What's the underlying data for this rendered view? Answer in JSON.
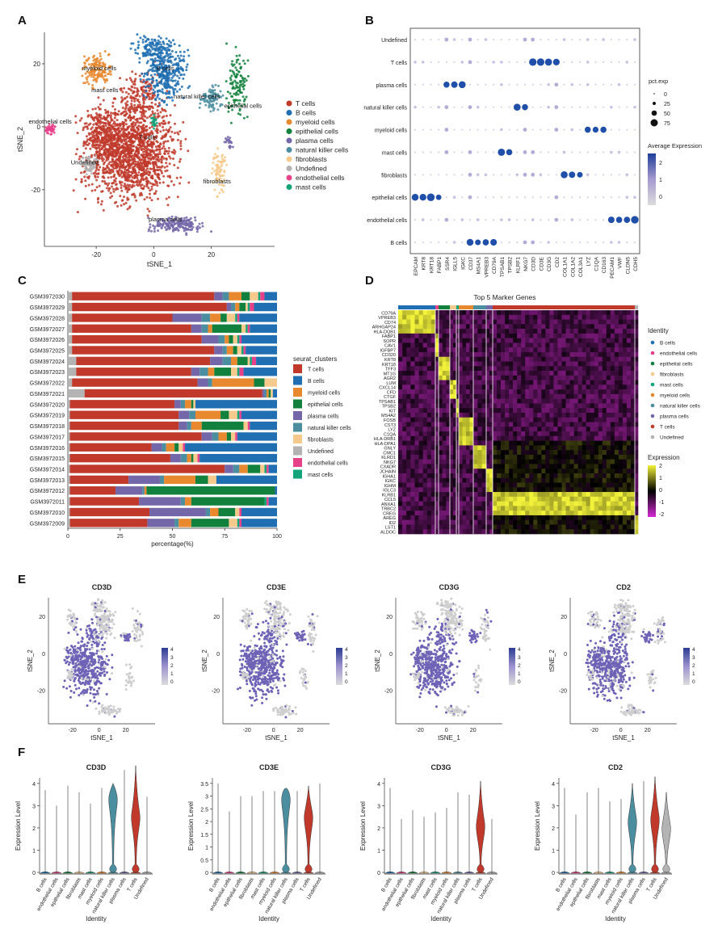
{
  "panel_letters": [
    "A",
    "B",
    "C",
    "D",
    "E",
    "F"
  ],
  "colors": {
    "T cells": "#c0392b",
    "B cells": "#1f6fb2",
    "myeloid cells": "#e8892f",
    "epithelial cells": "#12813d",
    "plasma cells": "#7467a9",
    "natural killer cells": "#4b8ea0",
    "fibroblasts": "#f6ca8c",
    "Undefined": "#b3b3b3",
    "endothelial cells": "#e7418a",
    "mast cells": "#15a37a"
  },
  "chart_data": [
    {
      "panel": "A",
      "type": "scatter",
      "xlabel": "tSNE_1",
      "ylabel": "tSNE_2",
      "xticks": [
        -20,
        0,
        20
      ],
      "yticks": [
        -20,
        0,
        20
      ],
      "xlim": [
        -38,
        42
      ],
      "ylim": [
        -38,
        30
      ],
      "legend": [
        "T cells",
        "B cells",
        "myeloid cells",
        "epithelial cells",
        "plasma cells",
        "natural killer cells",
        "fibroblasts",
        "Undefined",
        "endothelial cells",
        "mast cells"
      ],
      "legend_position": "right",
      "cluster_labels": [
        {
          "text": "myeloid cells",
          "x": -19,
          "y": 18
        },
        {
          "text": "B cells",
          "x": 4,
          "y": 18
        },
        {
          "text": "mast cells",
          "x": -17,
          "y": 11
        },
        {
          "text": "natural killer cells",
          "x": 15,
          "y": 9
        },
        {
          "text": "epithelial cells",
          "x": 31,
          "y": 6
        },
        {
          "text": "endothelial cells",
          "x": -36,
          "y": 1
        },
        {
          "text": "T cells",
          "x": -2,
          "y": -4
        },
        {
          "text": "Undefined",
          "x": -24,
          "y": -12
        },
        {
          "text": "fibroblasts",
          "x": 22,
          "y": -18
        },
        {
          "text": "plasma cells",
          "x": 4,
          "y": -30
        }
      ]
    },
    {
      "panel": "B",
      "type": "scatter",
      "genes": [
        "EPCAM",
        "KRT8",
        "KRT18",
        "FABP1",
        "SSR4",
        "IGLL5",
        "IGKC",
        "CD37",
        "MS4A1",
        "VPREB3",
        "CD79A",
        "TPSAB1",
        "TPSB2",
        "KLRF1",
        "NKG7",
        "CD3D",
        "CD3E",
        "CD3G",
        "CD2",
        "COL1A1",
        "COL1A2",
        "COL3A1",
        "LYZ",
        "C1QA",
        "CD163",
        "PECAM1",
        "VWF",
        "CLDN5",
        "CDH5"
      ],
      "identities": [
        "B cells",
        "endothelial cells",
        "epithelial cells",
        "fibroblasts",
        "mast cells",
        "myeloid cells",
        "natural killer cells",
        "plasma cells",
        "T cells",
        "Undefined"
      ],
      "size_legend_title": "pct.exp",
      "size_legend": [
        0,
        25,
        50,
        75
      ],
      "color_legend_title": "Average Expression",
      "color_ticks": [
        0,
        1,
        2
      ]
    },
    {
      "panel": "C",
      "type": "bar",
      "orientation": "horizontal",
      "stacked": true,
      "xlabel": "percentage(%)",
      "xticks": [
        0,
        25,
        50,
        75,
        100
      ],
      "legend_title": "seurat_clusters",
      "legend": [
        "T cells",
        "B cells",
        "myeloid cells",
        "epithelial cells",
        "plasma cells",
        "natural killer cells",
        "fibroblasts",
        "Undefined",
        "endothelial cells",
        "mast cells"
      ],
      "categories": [
        "GSM3972030",
        "GSM3972029",
        "GSM3972028",
        "GSM3972027",
        "GSM3972026",
        "GSM3972025",
        "GSM3972024",
        "GSM3972023",
        "GSM3972022",
        "GSM3972021",
        "GSM3972020",
        "GSM3972019",
        "GSM3972018",
        "GSM3972017",
        "GSM3972016",
        "GSM3972015",
        "GSM3972014",
        "GSM3972013",
        "GSM3972012",
        "GSM3972011",
        "GSM3972010",
        "GSM3972009"
      ],
      "series": [
        {
          "name": "Undefined",
          "values": [
            2,
            2,
            2,
            2,
            2,
            2,
            4,
            4,
            2,
            8,
            1,
            1,
            1,
            1,
            1,
            1,
            1,
            1,
            1,
            1,
            1,
            1
          ]
        },
        {
          "name": "T cells",
          "values": [
            68,
            74,
            48,
            57,
            62,
            68,
            64,
            55,
            60,
            85,
            50,
            52,
            52,
            63,
            39,
            48,
            74,
            28,
            22,
            33,
            38,
            37
          ]
        },
        {
          "name": "plasma cells",
          "values": [
            4,
            2,
            14,
            5,
            8,
            4,
            6,
            4,
            5,
            1,
            3,
            5,
            4,
            5,
            5,
            5,
            4,
            15,
            13,
            20,
            27,
            13
          ]
        },
        {
          "name": "natural killer cells",
          "values": [
            3,
            2,
            4,
            3,
            3,
            2,
            4,
            4,
            2,
            1,
            2,
            3,
            2,
            3,
            2,
            3,
            3,
            2,
            1,
            2,
            2,
            2
          ]
        },
        {
          "name": "myeloid cells",
          "values": [
            6,
            2,
            5,
            2,
            2,
            3,
            3,
            3,
            20,
            1,
            3,
            12,
            5,
            4,
            4,
            2,
            4,
            15,
            1,
            3,
            4,
            6
          ]
        },
        {
          "name": "epithelial cells",
          "values": [
            4,
            3,
            3,
            14,
            2,
            2,
            5,
            8,
            5,
            1,
            1,
            4,
            20,
            2,
            2,
            1,
            6,
            6,
            62,
            35,
            8,
            18
          ]
        },
        {
          "name": "fibroblasts",
          "values": [
            4,
            1,
            4,
            2,
            2,
            2,
            1,
            3,
            6,
            1,
            1,
            4,
            2,
            2,
            2,
            2,
            2,
            4,
            0,
            0,
            2,
            4
          ]
        },
        {
          "name": "mast cells",
          "values": [
            1,
            1,
            1,
            1,
            1,
            1,
            1,
            1,
            0,
            0,
            0,
            1,
            0,
            0,
            0,
            0,
            1,
            0,
            0,
            1,
            0,
            1
          ]
        },
        {
          "name": "endothelial cells",
          "values": [
            2,
            2,
            1,
            1,
            1,
            1,
            2,
            2,
            0,
            0,
            0,
            1,
            1,
            1,
            1,
            1,
            1,
            0,
            0,
            1,
            1,
            1
          ]
        },
        {
          "name": "B cells",
          "values": [
            6,
            11,
            18,
            13,
            17,
            15,
            10,
            16,
            0,
            2,
            39,
            17,
            13,
            19,
            44,
            37,
            4,
            29,
            1,
            4,
            17,
            17
          ]
        }
      ]
    },
    {
      "panel": "D",
      "type": "heatmap",
      "title": "Top 5 Marker Genes",
      "genes": [
        "CD79A",
        "VPREB3",
        "CD74",
        "ARHGAP24",
        "HLA-DQB1",
        "FABP1",
        "SOPR",
        "CAV1",
        "IGFBP7",
        "CD320",
        "KRT8",
        "KRT18",
        "TFF3",
        "MT1G",
        "AGR2",
        "LUM",
        "CXCL14",
        "CFD",
        "CTGF",
        "TPSAB1",
        "TPSB2",
        "KIT",
        "MS4A2",
        "FOSB",
        "CST3",
        "LYZ",
        "C1QA",
        "HLA-DRB1",
        "HLA-DPA1",
        "GNLY",
        "CMC1",
        "KLRD1",
        "NKG7",
        "CXADR",
        "JCHAIN",
        "IGHA1",
        "IGKC",
        "IGHM",
        "IGLC3",
        "KLRB1",
        "CCL5",
        "ANXA1",
        "TRBC2",
        "CREG",
        "AREG",
        "ID2",
        "LST1",
        "ALDOC"
      ],
      "legend_title": "Identity",
      "legend": [
        "B cells",
        "endothelial cells",
        "epithelial cells",
        "fibroblasts",
        "mast cells",
        "myeloid cells",
        "natural killer cells",
        "plasma cells",
        "T cells",
        "Undefined"
      ],
      "color_legend_title": "Expression",
      "color_ticks": [
        2,
        1,
        0,
        -1,
        -2
      ]
    },
    {
      "panel": "E",
      "type": "scatter",
      "genes": [
        "CD3D",
        "CD3E",
        "CD3G",
        "CD2"
      ],
      "xlabel": "tSNE_1",
      "ylabel": "tSNE_2",
      "xticks": [
        -20,
        0,
        20
      ],
      "yticks": [
        -20,
        0,
        20
      ],
      "color_ticks": [
        4,
        3,
        2,
        1,
        0
      ]
    },
    {
      "panel": "F",
      "type": "area",
      "xlabel": "Identity",
      "ylabel": "Expression Level",
      "panels": [
        {
          "gene": "CD3D",
          "ymax": 4,
          "categories": [
            "B cells",
            "endothelial cells",
            "epithelial cells",
            "fibroblasts",
            "mast cells",
            "myeloid cells",
            "natural killer cells",
            "plasma cells",
            "T cells",
            "Undefined"
          ],
          "max_values": [
            3.7,
            3.0,
            3.9,
            3.6,
            3.1,
            3.8,
            4.0,
            4.6,
            4.8,
            3.4
          ],
          "density_peaks": [
            null,
            null,
            null,
            null,
            null,
            null,
            3.2,
            null,
            2.4,
            null
          ]
        },
        {
          "gene": "CD3E",
          "ymax": 3.5,
          "categories": [
            "B cells",
            "endothelial cells",
            "epithelial cells",
            "fibroblasts",
            "mast cells",
            "myeloid cells",
            "natural killer cells",
            "plasma cells",
            "T cells",
            "Undefined"
          ],
          "max_values": [
            3.5,
            2.4,
            3.0,
            3.0,
            3.2,
            3.2,
            3.3,
            3.2,
            3.4,
            3.5
          ],
          "density_peaks": [
            null,
            null,
            null,
            null,
            null,
            null,
            2.8,
            null,
            2.1,
            null
          ]
        },
        {
          "gene": "CD3G",
          "ymax": 4,
          "categories": [
            "B cells",
            "endothelial cells",
            "epithelial cells",
            "fibroblasts",
            "mast cells",
            "myeloid cells",
            "natural killer cells",
            "plasma cells",
            "T cells",
            "Undefined"
          ],
          "max_values": [
            3.8,
            2.4,
            2.8,
            2.5,
            2.7,
            2.9,
            3.6,
            3.5,
            4.1,
            2.4
          ],
          "density_peaks": [
            null,
            null,
            null,
            null,
            null,
            null,
            null,
            null,
            2.0,
            null
          ]
        },
        {
          "gene": "CD2",
          "ymax": 4,
          "categories": [
            "B cells",
            "endothelial cells",
            "epithelial cells",
            "fibroblasts",
            "mast cells",
            "myeloid cells",
            "natural killer cells",
            "plasma cells",
            "T cells",
            "Undefined"
          ],
          "max_values": [
            3.8,
            2.6,
            3.6,
            3.8,
            3.2,
            3.3,
            4.0,
            4.1,
            4.3,
            3.6
          ],
          "density_peaks": [
            null,
            null,
            null,
            null,
            null,
            null,
            2.2,
            null,
            2.3,
            1.9
          ]
        }
      ]
    }
  ]
}
